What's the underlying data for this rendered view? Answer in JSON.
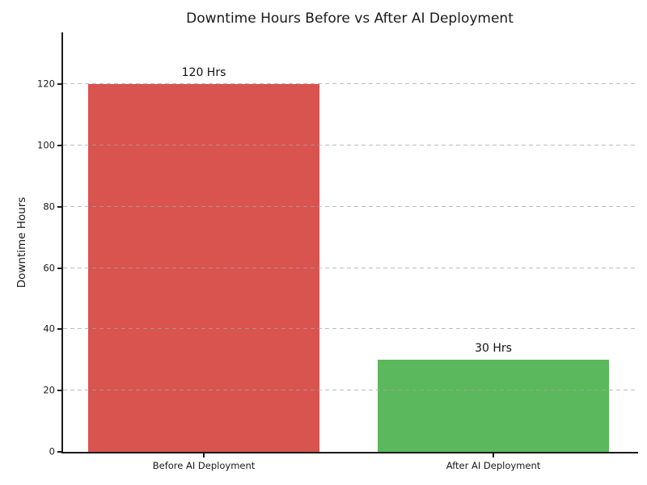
{
  "chart_data": {
    "type": "bar",
    "title": "Downtime Hours Before vs After AI Deployment",
    "categories": [
      "Before AI Deployment",
      "After AI Deployment"
    ],
    "values": [
      120,
      30
    ],
    "bar_labels": [
      "120 Hrs",
      "30 Hrs"
    ],
    "bar_colors": [
      "#d9534f",
      "#5cb85c"
    ],
    "xlabel": "",
    "ylabel": "Downtime Hours",
    "yticks": [
      0,
      20,
      40,
      60,
      80,
      100,
      120
    ],
    "ylim": [
      0,
      137
    ],
    "grid": "horizontal-dashed",
    "legend": "none",
    "axis_color": "#1a1a1a",
    "background_color": "#ffffff"
  }
}
